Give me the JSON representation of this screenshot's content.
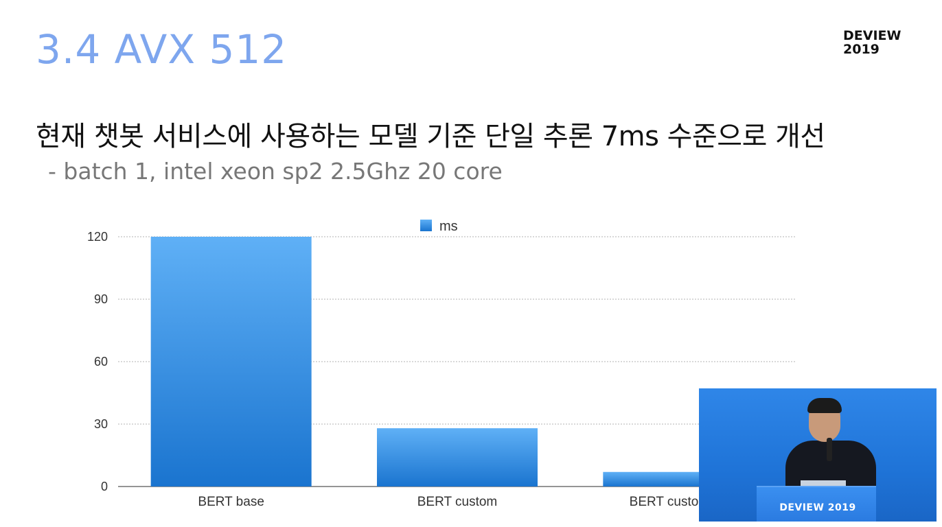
{
  "slide": {
    "title": "3.4 AVX 512",
    "brand_line1": "DEVIEW",
    "brand_line2": "2019",
    "headline": "현재 챗봇 서비스에 사용하는 모델 기준 단일 추론 7ms 수준으로 개선",
    "subline": "- batch 1, intel xeon sp2 2.5Ghz 20 core"
  },
  "chart_data": {
    "type": "bar",
    "categories": [
      "BERT base",
      "BERT custom",
      "BERT custom AVX"
    ],
    "series": [
      {
        "name": "ms",
        "values": [
          120,
          28,
          7
        ]
      }
    ],
    "yticks": [
      "0",
      "30",
      "60",
      "90",
      "120"
    ],
    "ylim": [
      0,
      120
    ],
    "grid": true,
    "legend_position": "top-center",
    "bar_color": "#2b8de0"
  },
  "video_overlay": {
    "podium_label": "DEVIEW 2019"
  }
}
